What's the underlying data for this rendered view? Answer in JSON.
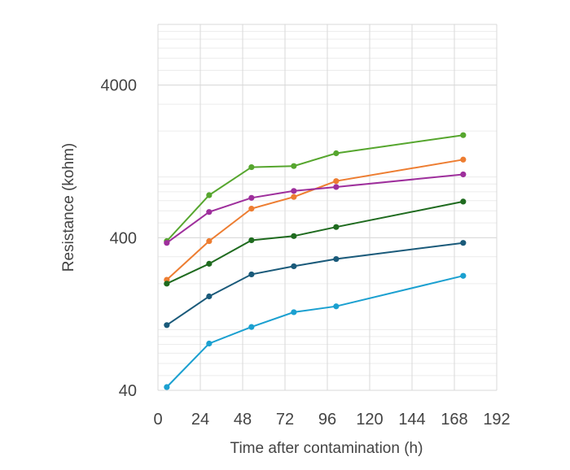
{
  "chart_data": {
    "type": "line",
    "title": "",
    "xlabel": "Time after contamination (h)",
    "ylabel": "Resistance (kohm)",
    "x_scale": "linear",
    "y_scale": "log",
    "xlim": [
      0,
      192
    ],
    "ylim": [
      40,
      10000
    ],
    "x_ticks": [
      0,
      24,
      48,
      72,
      96,
      120,
      144,
      168,
      192
    ],
    "y_ticks": [
      40,
      400,
      4000
    ],
    "grid": true,
    "legend": "none",
    "x": [
      5,
      29,
      53,
      77,
      101,
      173
    ],
    "series": [
      {
        "color": "#56a62e",
        "values": [
          380,
          760,
          1160,
          1180,
          1430,
          1880
        ]
      },
      {
        "color": "#ed7d31",
        "values": [
          212,
          380,
          620,
          740,
          940,
          1300
        ]
      },
      {
        "color": "#9e2f9c",
        "values": [
          370,
          590,
          730,
          810,
          860,
          1040
        ]
      },
      {
        "color": "#1f6b1f",
        "values": [
          200,
          270,
          385,
          410,
          470,
          690
        ]
      },
      {
        "color": "#1a5a7a",
        "values": [
          107,
          165,
          230,
          260,
          290,
          370
        ]
      },
      {
        "color": "#1ba0d0",
        "values": [
          42,
          81,
          104,
          130,
          142,
          225
        ]
      }
    ]
  }
}
